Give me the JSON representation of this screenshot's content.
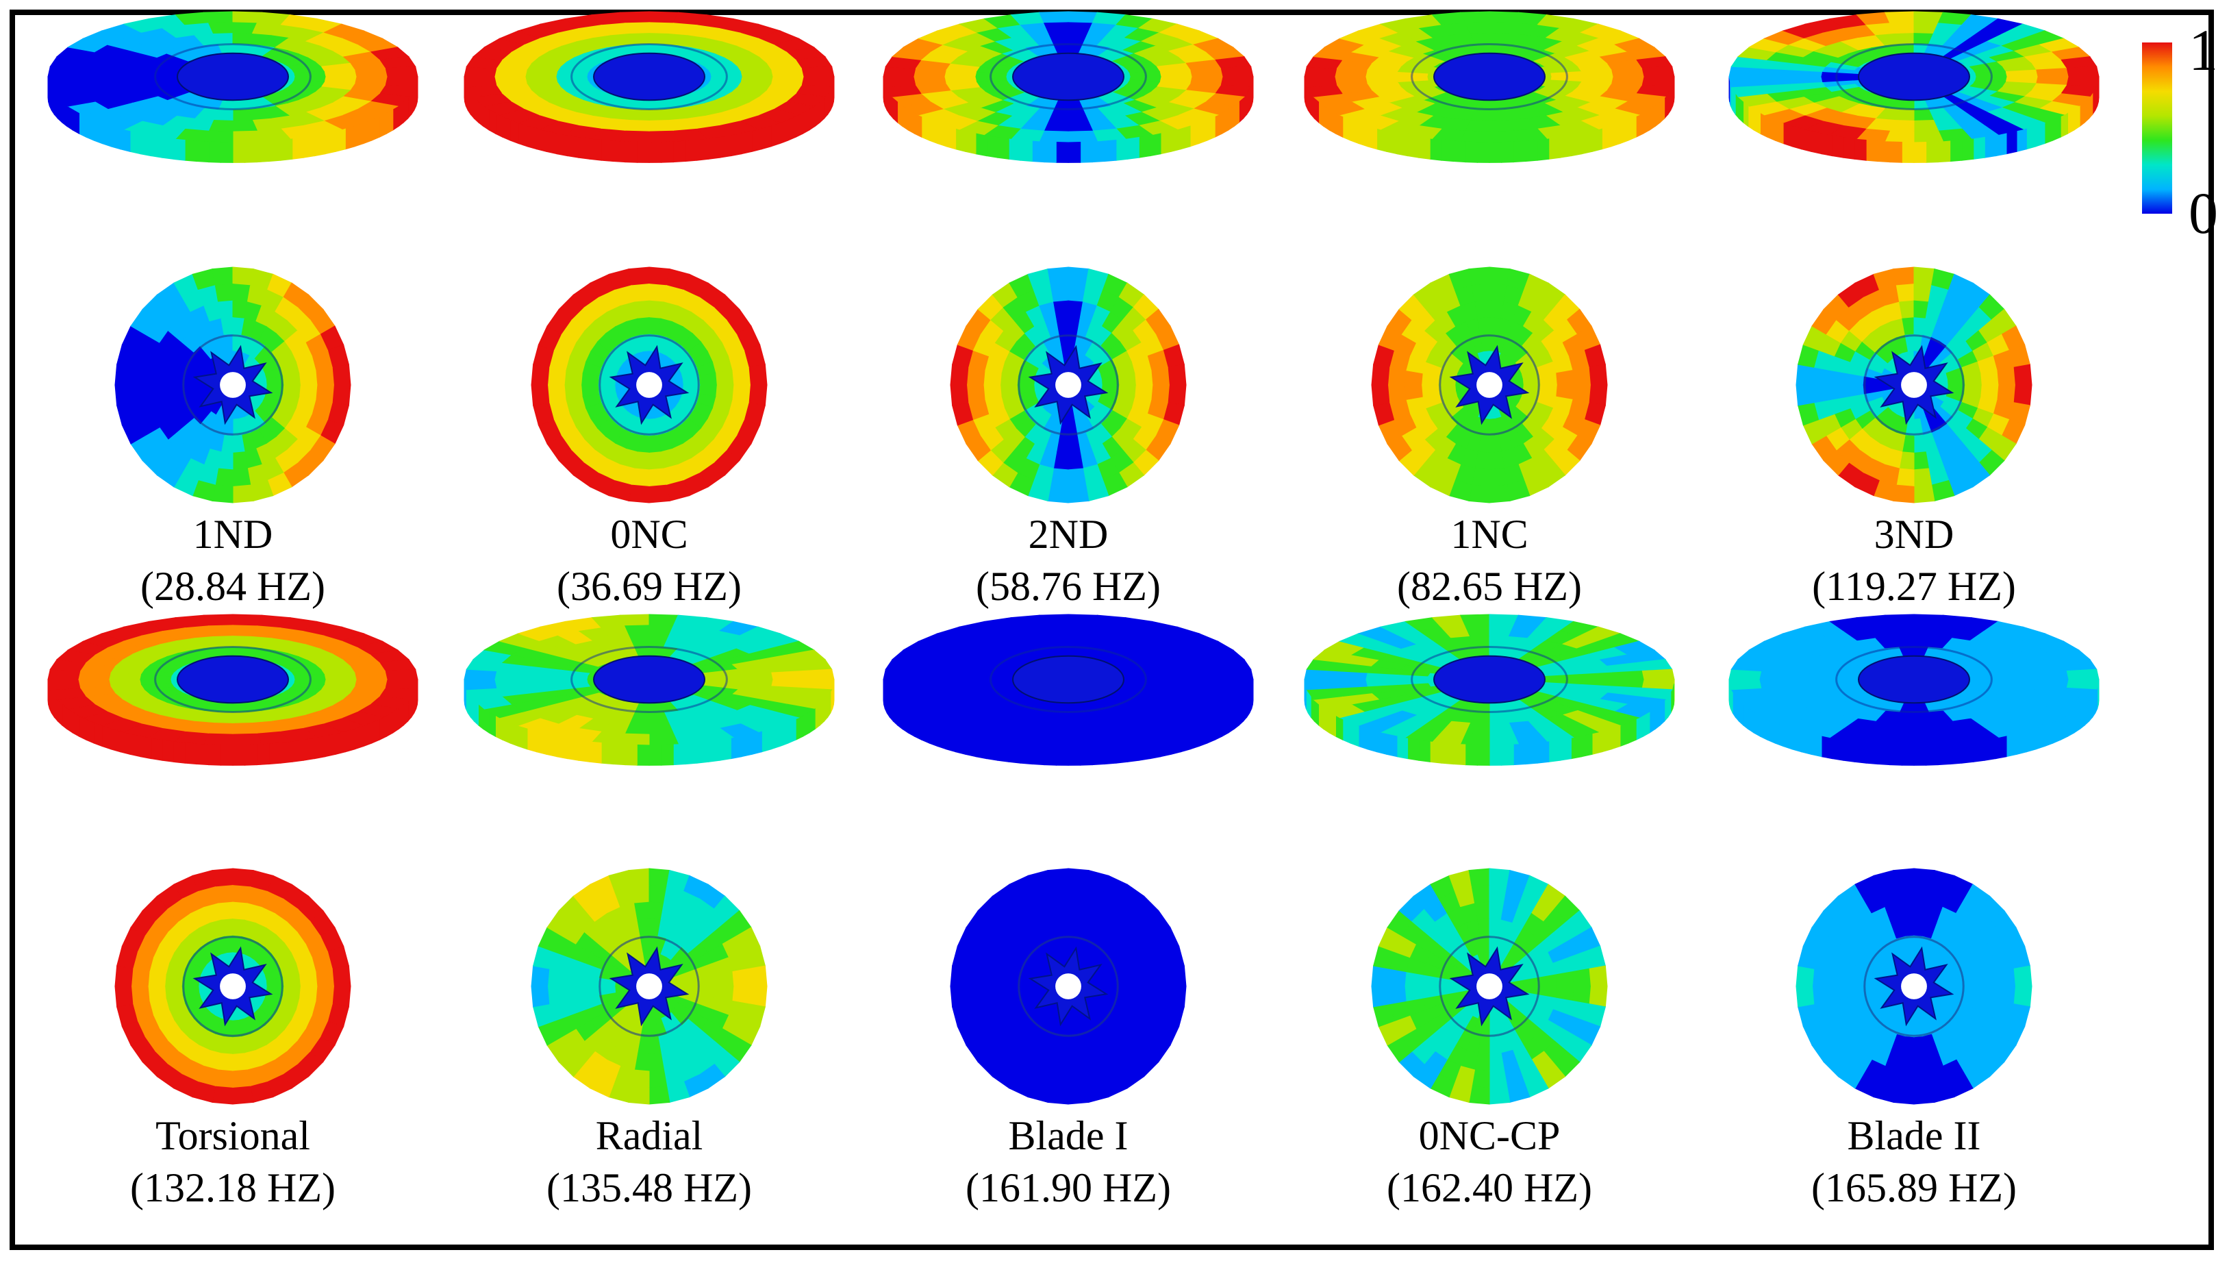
{
  "legend": {
    "max_label": "1",
    "min_label": "0",
    "colors": [
      "#0000e6",
      "#00b4ff",
      "#00e6c8",
      "#2ee61e",
      "#b4e600",
      "#f5dc00",
      "#ff8c00",
      "#e61010"
    ]
  },
  "modes": [
    {
      "id": "1nd",
      "name": "1ND",
      "freq": "(28.84 HZ)",
      "pattern": "nd1"
    },
    {
      "id": "0nc",
      "name": "0NC",
      "freq": "(36.69 HZ)",
      "pattern": "rings_outer"
    },
    {
      "id": "2nd",
      "name": "2ND",
      "freq": "(58.76 HZ)",
      "pattern": "nd2"
    },
    {
      "id": "1nc",
      "name": "1NC",
      "freq": "(82.65 HZ)",
      "pattern": "rings_mid"
    },
    {
      "id": "3nd",
      "name": "3ND",
      "freq": "(119.27 HZ)",
      "pattern": "nd3"
    },
    {
      "id": "torsional",
      "name": "Torsional",
      "freq": "(132.18 HZ)",
      "pattern": "rings_strong"
    },
    {
      "id": "radial",
      "name": "Radial",
      "freq": "(135.48 HZ)",
      "pattern": "radial"
    },
    {
      "id": "blade-1",
      "name": "Blade I",
      "freq": "(161.90 HZ)",
      "pattern": "blade"
    },
    {
      "id": "0nc-cp",
      "name": "0NC-CP",
      "freq": "(162.40 HZ)",
      "pattern": "wavy"
    },
    {
      "id": "blade-2",
      "name": "Blade II",
      "freq": "(165.89 HZ)",
      "pattern": "blade2"
    }
  ]
}
